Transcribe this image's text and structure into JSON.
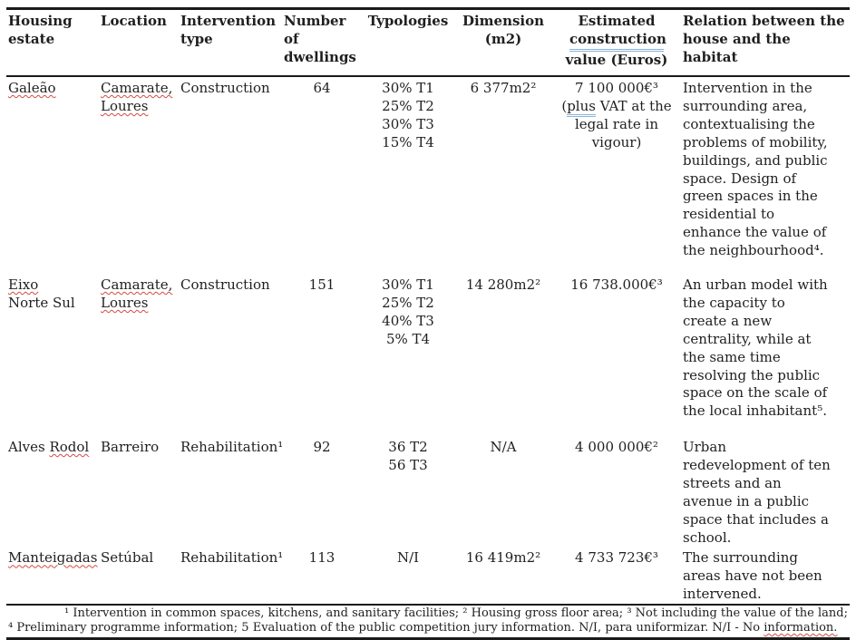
{
  "header": {
    "col1": "Housing estate",
    "col2": "Location",
    "col3": "Intervention type",
    "col4": "Number of dwellings",
    "col5": "Typologies",
    "col6": "Dimension (m2)",
    "col7_line1": "Estimated",
    "col7_line2": "construction",
    "col7_line3": "value (Euros)",
    "col8": "Relation between the house and the habitat"
  },
  "rows": [
    {
      "estate": "Galeão",
      "location_line1": "Camarate,",
      "location_line2": "Loures",
      "intervention": "Construction",
      "dwellings": "64",
      "typologies": [
        "30% T1",
        "25% T2",
        "30% T3",
        "15% T4"
      ],
      "dimension": "6 377m2²",
      "value": "7 100 000€³",
      "value_note_open": "(",
      "value_note_plus": "plus",
      "value_note_rest": " VAT at the legal rate in vigour)",
      "relation": "Intervention in the surrounding area, contextualising the problems of mobility, buildings, and public space. Design of green spaces in the residential to enhance the value of the neighbourhood⁴."
    },
    {
      "estate_line1": "Eixo",
      "estate_line2": "Norte Sul",
      "location_line1": "Camarate,",
      "location_line2": "Loures",
      "intervention": "Construction",
      "dwellings": "151",
      "typologies": [
        "30% T1",
        "25% T2",
        "40% T3",
        "5% T4"
      ],
      "dimension": "14 280m2²",
      "value": "16 738.000€³",
      "relation": "An urban model with the capacity to create a new centrality, while at the same time resolving the public space on the scale of the local inhabitant⁵."
    },
    {
      "estate_first": "Alves ",
      "estate_second": "Rodol",
      "location": "Barreiro",
      "intervention": "Rehabilitation¹",
      "dwellings": "92",
      "typologies": [
        "36 T2",
        "56 T3"
      ],
      "dimension": "N/A",
      "value": "4 000 000€²",
      "relation": "Urban redevelopment of ten streets and an avenue in a public space that includes a school."
    },
    {
      "estate": "Manteigadas",
      "location": "Setúbal",
      "intervention": "Rehabilitation¹",
      "dwellings": "113",
      "typologies": [
        "N/I"
      ],
      "dimension": "16 419m2²",
      "value": "4 733 723€³",
      "relation": "The surrounding areas have not been intervened."
    }
  ],
  "footnote": {
    "body": "¹ Intervention in common spaces, kitchens, and sanitary facilities; ² Housing gross floor area; ³ Not including the value of the land; ⁴ Preliminary programme information; 5 Evaluation of the public competition jury information. N/I, para uniformizar.  N/I - No ",
    "flagged": "information."
  },
  "colors": {
    "spellcheck_red": "#d24a43",
    "grammar_blue": "#8ab4dc",
    "text": "#1f1f1f",
    "border": "#1a1a1a"
  }
}
